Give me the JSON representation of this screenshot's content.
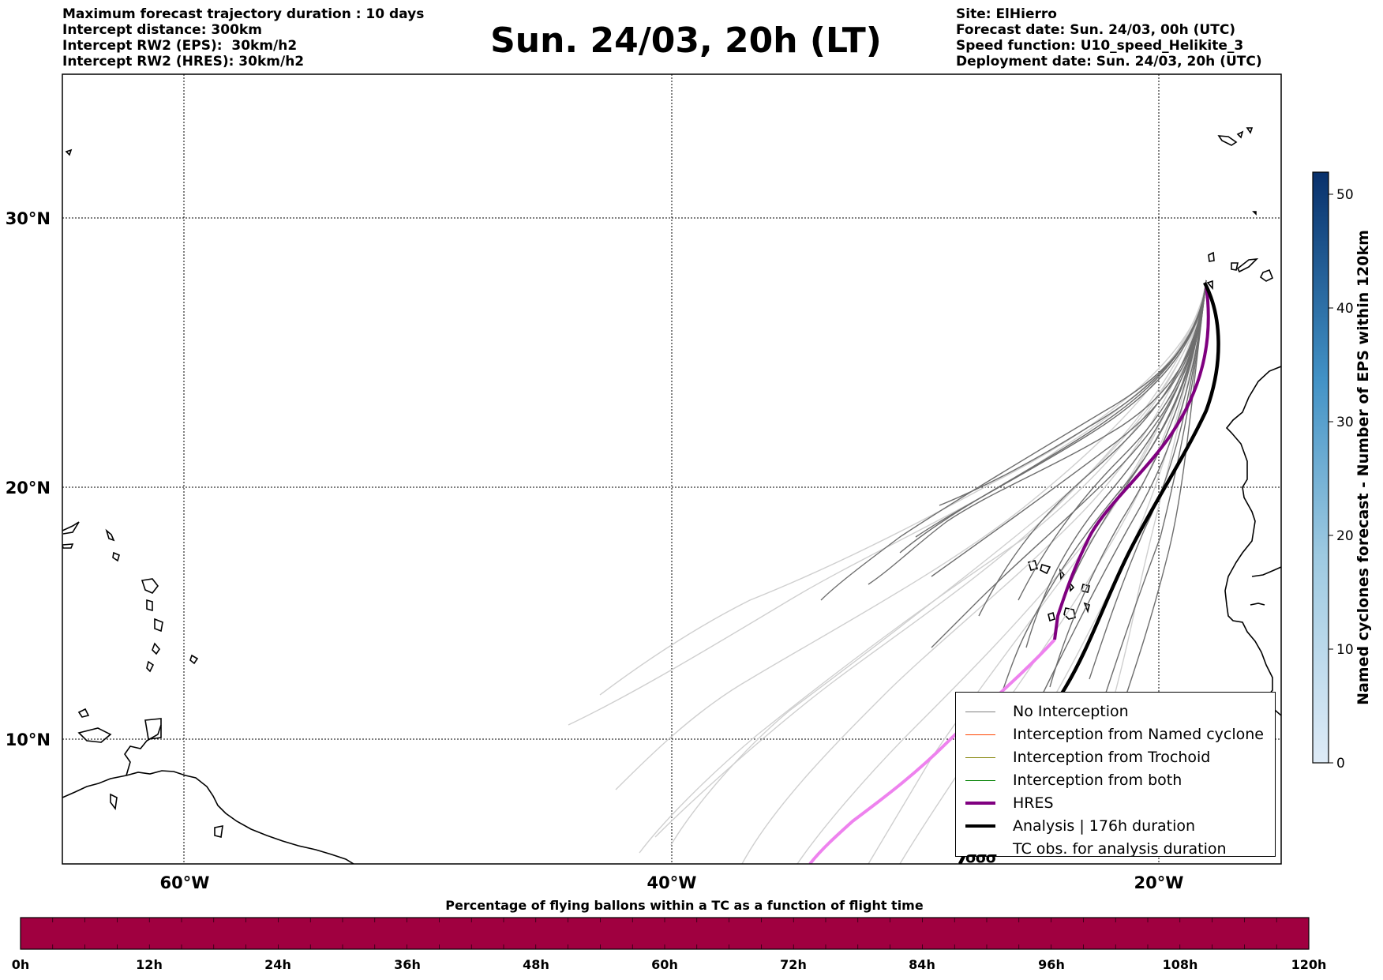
{
  "info_left": [
    "Maximum forecast trajectory duration : 10 days",
    "Intercept distance: 300km",
    "Intercept RW2 (EPS):  30km/h2",
    "Intercept RW2 (HRES): 30km/h2"
  ],
  "title": "Sun. 24/03, 20h (LT)",
  "info_right": [
    "Site: ElHierro",
    "Forecast date: Sun. 24/03, 00h (UTC)",
    "Speed function: U10_speed_Helikite_3",
    "Deployment date: Sun. 24/03, 20h (UTC)"
  ],
  "map": {
    "lat_labels": [
      "30°N",
      "20°N",
      "10°N"
    ],
    "lon_labels": [
      "60°W",
      "40°W",
      "20°W"
    ]
  },
  "legend": {
    "items": [
      {
        "label": "No Interception",
        "color": "#808080"
      },
      {
        "label": "Interception from Named cyclone",
        "color": "#ff4500"
      },
      {
        "label": "Interception from Trochoid",
        "color": "#808000"
      },
      {
        "label": "Interception from both",
        "color": "#008000"
      },
      {
        "label": "HRES",
        "color": "#800080"
      },
      {
        "label": "Analysis | 176h duration",
        "color": "#000000"
      },
      {
        "label": "TC obs. for analysis duration",
        "color": "#000000"
      }
    ]
  },
  "colorbar": {
    "label": "Named cyclones forecast - Number of EPS within 120km",
    "ticks": [
      "0",
      "10",
      "20",
      "30",
      "40",
      "50"
    ],
    "range": [
      0,
      52
    ],
    "colors": [
      "#deebf7",
      "#08306b"
    ]
  },
  "timebar": {
    "title": "Percentage of flying ballons within a TC as a function of flight time",
    "labels": [
      "0h",
      "12h",
      "24h",
      "36h",
      "48h",
      "60h",
      "72h",
      "84h",
      "96h",
      "108h",
      "120h"
    ],
    "color": "#a00040"
  }
}
